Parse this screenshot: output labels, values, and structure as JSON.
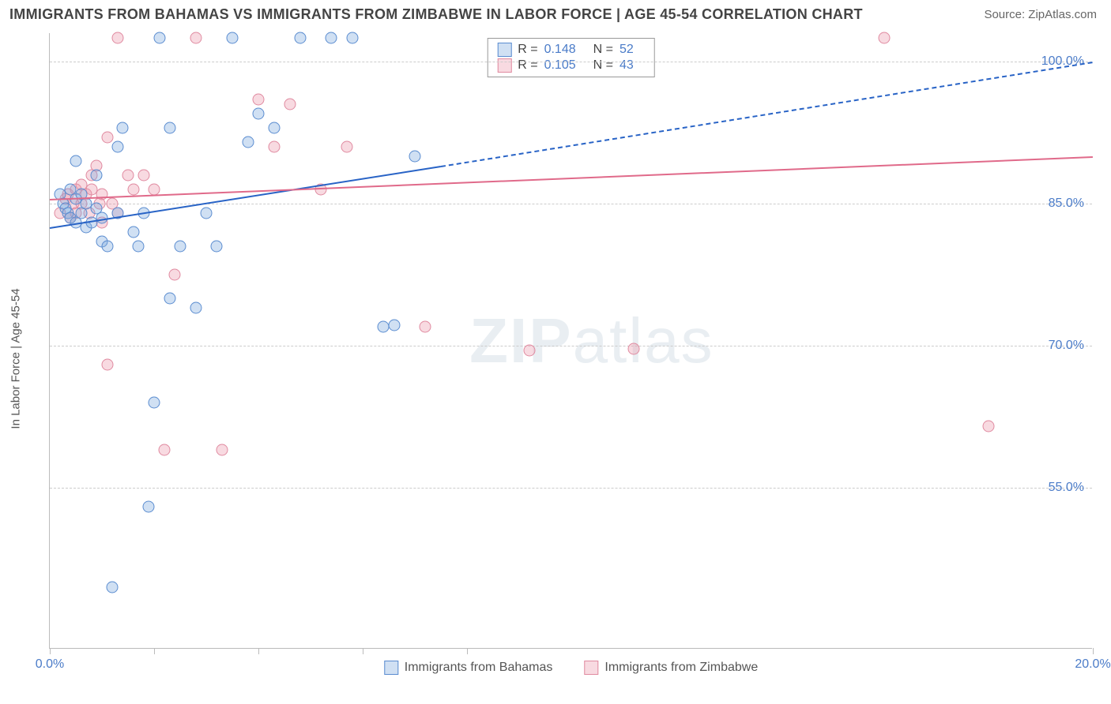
{
  "header": {
    "title": "IMMIGRANTS FROM BAHAMAS VS IMMIGRANTS FROM ZIMBABWE IN LABOR FORCE | AGE 45-54 CORRELATION CHART",
    "source": "Source: ZipAtlas.com"
  },
  "chart": {
    "type": "scatter",
    "y_axis_label": "In Labor Force | Age 45-54",
    "xlim": [
      0,
      20
    ],
    "ylim": [
      38,
      103
    ],
    "x_ticks": [
      0,
      2,
      4,
      6,
      8,
      20
    ],
    "x_tick_labels": {
      "0": "0.0%",
      "20": "20.0%"
    },
    "y_gridlines": [
      55,
      70,
      85,
      100
    ],
    "y_tick_labels": {
      "55": "55.0%",
      "70": "70.0%",
      "85": "85.0%",
      "100": "100.0%"
    },
    "grid_color": "#cccccc",
    "axis_color": "#bbbbbb",
    "background_color": "#ffffff",
    "series": {
      "blue": {
        "name": "Immigrants from Bahamas",
        "color_fill": "rgba(120,165,220,0.35)",
        "color_border": "#5a8cd0",
        "R": "0.148",
        "N": "52",
        "trend": {
          "x1": 0,
          "y1": 82.5,
          "x2_solid": 7.5,
          "y2_solid": 89,
          "x2_dash": 20,
          "y2_dash": 100,
          "color": "#2863c6"
        },
        "points": [
          [
            0.2,
            86
          ],
          [
            0.25,
            85
          ],
          [
            0.3,
            84.5
          ],
          [
            0.35,
            84
          ],
          [
            0.4,
            83.5
          ],
          [
            0.4,
            86.5
          ],
          [
            0.5,
            83
          ],
          [
            0.5,
            85.5
          ],
          [
            0.5,
            89.5
          ],
          [
            0.6,
            84
          ],
          [
            0.6,
            86
          ],
          [
            0.7,
            82.5
          ],
          [
            0.7,
            85
          ],
          [
            0.8,
            83
          ],
          [
            0.9,
            84.5
          ],
          [
            0.9,
            88
          ],
          [
            1.0,
            81
          ],
          [
            1.0,
            83.5
          ],
          [
            1.1,
            80.5
          ],
          [
            1.3,
            84
          ],
          [
            1.3,
            91
          ],
          [
            1.4,
            93
          ],
          [
            1.6,
            82
          ],
          [
            1.7,
            80.5
          ],
          [
            1.8,
            84
          ],
          [
            1.9,
            53
          ],
          [
            2.0,
            64
          ],
          [
            2.1,
            102.5
          ],
          [
            2.3,
            75
          ],
          [
            2.3,
            93
          ],
          [
            2.5,
            80.5
          ],
          [
            2.8,
            74
          ],
          [
            3.0,
            84
          ],
          [
            3.2,
            80.5
          ],
          [
            3.5,
            102.5
          ],
          [
            3.8,
            91.5
          ],
          [
            4.0,
            94.5
          ],
          [
            4.3,
            93
          ],
          [
            4.8,
            102.5
          ],
          [
            5.4,
            102.5
          ],
          [
            5.8,
            102.5
          ],
          [
            6.4,
            72
          ],
          [
            6.6,
            72.2
          ],
          [
            7.0,
            90
          ],
          [
            1.2,
            44.5
          ]
        ]
      },
      "pink": {
        "name": "Immigrants from Zimbabwe",
        "color_fill": "rgba(235,150,170,0.35)",
        "color_border": "#e08aa0",
        "R": "0.105",
        "N": "43",
        "trend": {
          "x1": 0,
          "y1": 85.5,
          "x2_solid": 20,
          "y2_solid": 90,
          "color": "#e06a8a"
        },
        "points": [
          [
            0.2,
            84
          ],
          [
            0.3,
            85.5
          ],
          [
            0.35,
            86
          ],
          [
            0.4,
            83.5
          ],
          [
            0.45,
            85
          ],
          [
            0.5,
            84
          ],
          [
            0.5,
            86.5
          ],
          [
            0.6,
            85
          ],
          [
            0.6,
            87
          ],
          [
            0.7,
            86
          ],
          [
            0.75,
            84
          ],
          [
            0.8,
            88
          ],
          [
            0.8,
            86.5
          ],
          [
            0.9,
            89
          ],
          [
            0.95,
            85
          ],
          [
            1.0,
            83
          ],
          [
            1.0,
            86
          ],
          [
            1.1,
            92
          ],
          [
            1.1,
            68
          ],
          [
            1.2,
            85
          ],
          [
            1.3,
            84
          ],
          [
            1.3,
            102.5
          ],
          [
            1.5,
            88
          ],
          [
            1.6,
            86.5
          ],
          [
            1.8,
            88
          ],
          [
            2.0,
            86.5
          ],
          [
            2.2,
            59
          ],
          [
            2.4,
            77.5
          ],
          [
            2.8,
            102.5
          ],
          [
            3.3,
            59
          ],
          [
            4.0,
            96
          ],
          [
            4.3,
            91
          ],
          [
            4.6,
            95.5
          ],
          [
            5.2,
            86.5
          ],
          [
            5.7,
            91
          ],
          [
            7.2,
            72
          ],
          [
            9.2,
            69.5
          ],
          [
            11.2,
            69.7
          ],
          [
            16.0,
            102.5
          ],
          [
            18.0,
            61.5
          ]
        ]
      }
    },
    "legend_top": {
      "border_color": "#999999",
      "rows": [
        {
          "swatch": "blue",
          "R_label": "R =",
          "R_val": "0.148",
          "N_label": "N =",
          "N_val": "52"
        },
        {
          "swatch": "pink",
          "R_label": "R =",
          "R_val": "0.105",
          "N_label": "N =",
          "N_val": "43"
        }
      ]
    },
    "legend_bottom": [
      {
        "swatch": "blue",
        "label": "Immigrants from Bahamas"
      },
      {
        "swatch": "pink",
        "label": "Immigrants from Zimbabwe"
      }
    ],
    "watermark": {
      "bold": "ZIP",
      "light": "atlas",
      "color": "#e9eef2"
    }
  }
}
